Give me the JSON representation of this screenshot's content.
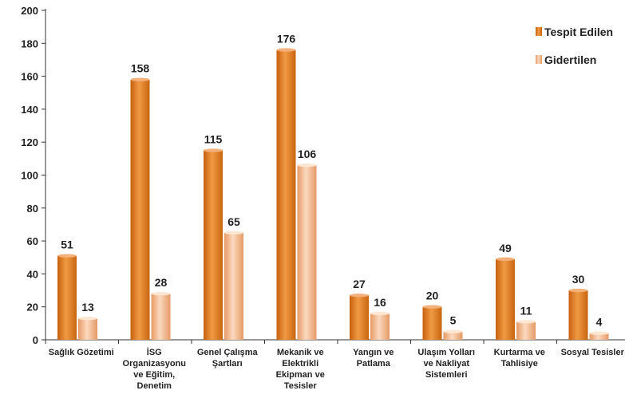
{
  "chart_data": {
    "type": "bar",
    "categories": [
      [
        "Sağlık Gözetimi"
      ],
      [
        "İSG",
        "Organizasyonu",
        "ve Eğitim,",
        "Denetim"
      ],
      [
        "Genel Çalışma",
        "Şartları"
      ],
      [
        "Mekanik ve",
        "Elektrikli",
        "Ekipman ve",
        "Tesisler"
      ],
      [
        "Yangın ve",
        "Patlama"
      ],
      [
        "Ulaşım Yolları",
        "ve Nakliyat",
        "Sistemleri"
      ],
      [
        "Kurtarma ve",
        "Tahlisiye"
      ],
      [
        "Sosyal Tesisler"
      ]
    ],
    "series": [
      {
        "name": "Tespit Edilen",
        "values": [
          51,
          158,
          115,
          176,
          27,
          20,
          49,
          30
        ],
        "color": "#e07b1e"
      },
      {
        "name": "Gidertilen",
        "values": [
          13,
          28,
          65,
          106,
          16,
          5,
          11,
          4
        ],
        "color": "#f0b78a"
      }
    ],
    "ylim": [
      0,
      200
    ],
    "yticks": [
      "0",
      "20",
      "40",
      "60",
      "80",
      "100",
      "120",
      "140",
      "160",
      "180",
      "200"
    ],
    "legend_position": "top-right",
    "grid": false
  }
}
